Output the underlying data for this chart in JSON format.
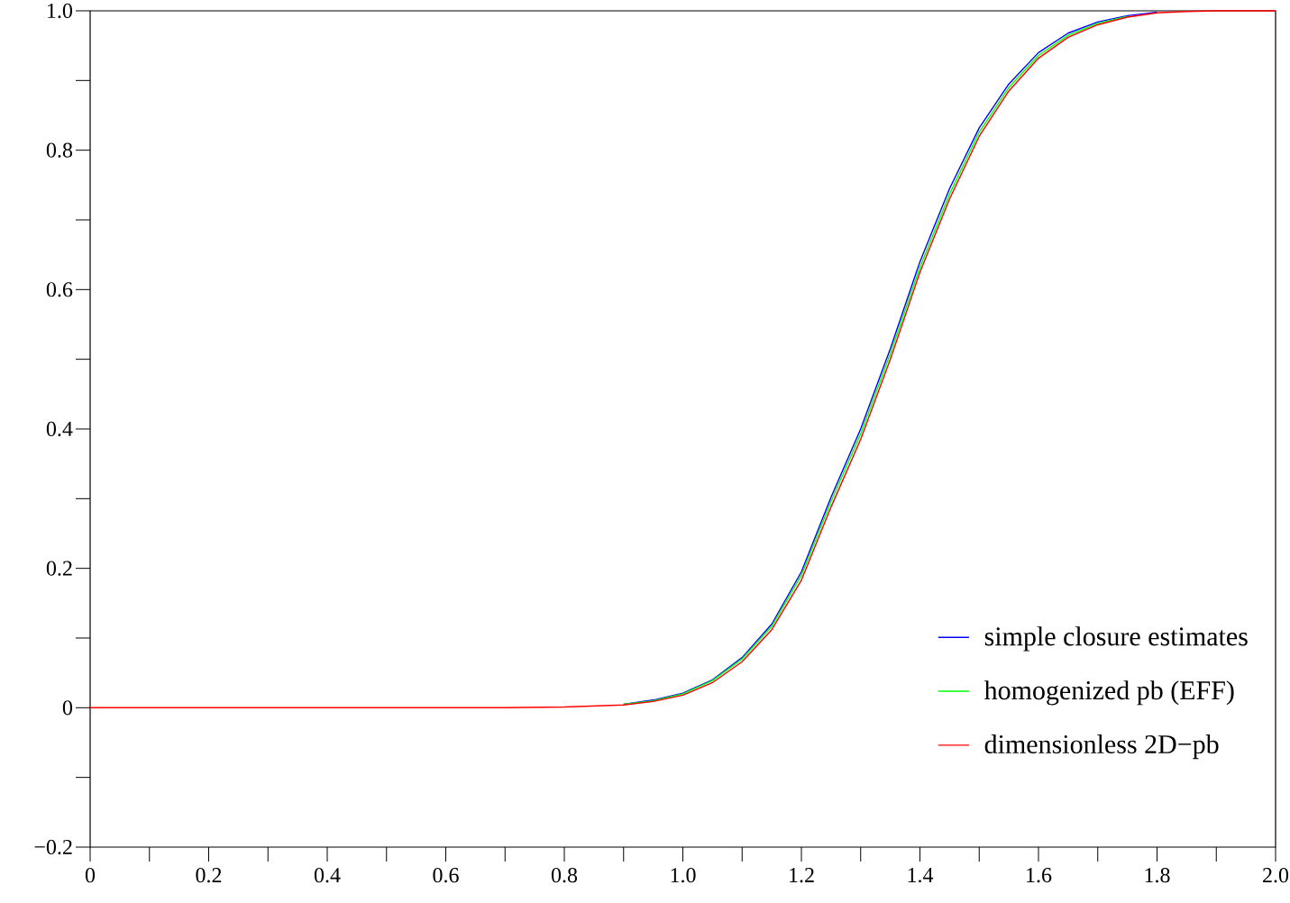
{
  "chart_data": {
    "type": "line",
    "x": [
      0,
      0.5,
      0.7,
      0.8,
      0.9,
      0.95,
      1.0,
      1.05,
      1.1,
      1.15,
      1.2,
      1.25,
      1.3,
      1.35,
      1.4,
      1.45,
      1.5,
      1.55,
      1.6,
      1.65,
      1.7,
      1.75,
      1.8,
      1.85,
      1.9,
      2.0
    ],
    "series": [
      {
        "name": "simple closure estimates",
        "color": "#0000ff",
        "values": [
          null,
          null,
          null,
          null,
          0.005,
          0.011,
          0.021,
          0.04,
          0.072,
          0.12,
          0.195,
          0.302,
          0.4,
          0.515,
          0.64,
          0.745,
          0.832,
          0.895,
          0.94,
          0.968,
          0.984,
          0.993,
          0.998,
          null,
          null,
          null
        ]
      },
      {
        "name": "homogenized pb (EFF)",
        "color": "#00ff00",
        "values": [
          null,
          null,
          null,
          null,
          0.005,
          0.01,
          0.02,
          0.039,
          0.07,
          0.117,
          0.19,
          0.296,
          0.393,
          0.508,
          0.632,
          0.737,
          0.826,
          0.89,
          0.936,
          0.965,
          0.982,
          0.992,
          null,
          null,
          null,
          null
        ]
      },
      {
        "name": "dimensionless 2D−pb",
        "color": "#ff0000",
        "values": [
          0,
          0,
          0,
          0.001,
          0.004,
          0.009,
          0.018,
          0.036,
          0.066,
          0.112,
          0.183,
          0.288,
          0.385,
          0.5,
          0.625,
          0.73,
          0.82,
          0.885,
          0.932,
          0.962,
          0.98,
          0.991,
          0.997,
          0.999,
          1.0,
          1.0
        ]
      }
    ],
    "xlim": [
      0,
      2
    ],
    "ylim": [
      -0.2,
      1
    ],
    "xticks": [
      0,
      {
        "value": 0.1,
        "label": null
      },
      0.2,
      {
        "value": 0.3,
        "label": null
      },
      0.4,
      {
        "value": 0.5,
        "label": null
      },
      0.6,
      {
        "value": 0.7,
        "label": null
      },
      0.8,
      {
        "value": 0.9,
        "label": null
      },
      {
        "value": 1,
        "label": "1.0"
      },
      {
        "value": 1.1,
        "label": null
      },
      1.2,
      {
        "value": 1.3,
        "label": null
      },
      1.4,
      {
        "value": 1.5,
        "label": null
      },
      1.6,
      {
        "value": 1.7,
        "label": null
      },
      1.8,
      {
        "value": 1.9,
        "label": null
      },
      {
        "value": 2,
        "label": "2.0"
      }
    ],
    "yticks": [
      {
        "value": -0.2,
        "label": "−0.2"
      },
      {
        "value": -0.1,
        "label": null
      },
      0,
      {
        "value": 0.1,
        "label": null
      },
      0.2,
      {
        "value": 0.3,
        "label": null
      },
      0.4,
      {
        "value": 0.5,
        "label": null
      },
      0.6,
      {
        "value": 0.7,
        "label": null
      },
      0.8,
      {
        "value": 0.9,
        "label": null
      },
      {
        "value": 1,
        "label": "1.0"
      }
    ],
    "legend": "bottom right"
  }
}
